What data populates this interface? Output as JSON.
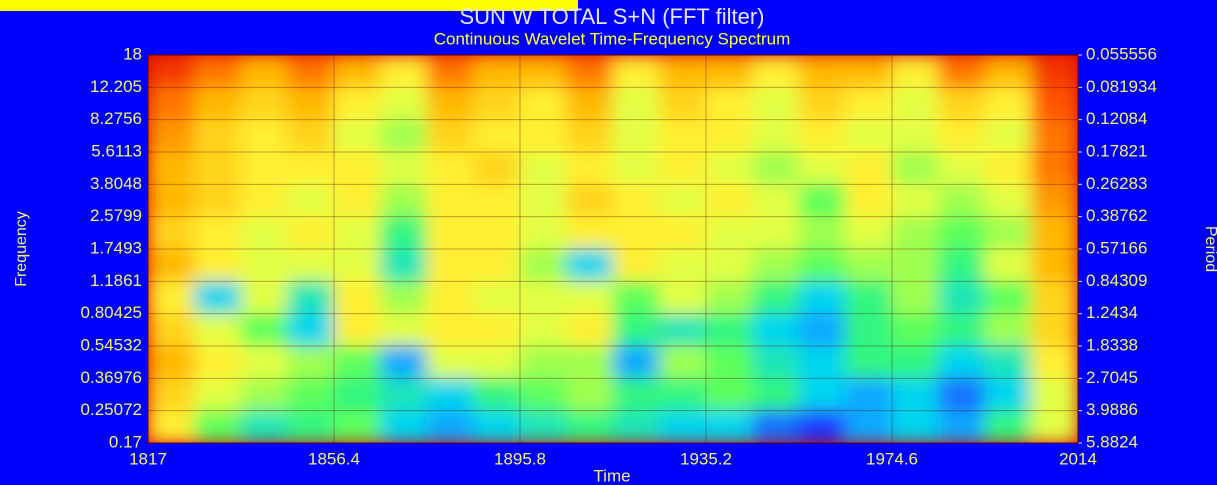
{
  "chart_data": {
    "type": "heatmap",
    "title": "SUN W TOTAL S+N (FFT filter)",
    "subtitle": "Continuous Wavelet Time-Frequency Spectrum",
    "xlabel": "Time",
    "ylabel": "Frequency",
    "y2label": "Period",
    "xlim": [
      1817,
      2014
    ],
    "xticks": [
      1817,
      1856.4,
      1895.8,
      1935.2,
      1974.6,
      2014
    ],
    "ylim": [
      0.17,
      18
    ],
    "yticks": [
      18,
      12.205,
      8.2756,
      5.6113,
      3.8048,
      2.5799,
      1.7493,
      1.1861,
      0.80425,
      0.54532,
      0.36976,
      0.25072,
      0.17
    ],
    "y2lim": [
      5.8824,
      0.055556
    ],
    "y2ticks": [
      0.055556,
      0.081934,
      0.12084,
      0.17821,
      0.26283,
      0.38762,
      0.57166,
      0.84309,
      1.2434,
      1.8338,
      2.7045,
      3.9886,
      5.8824
    ],
    "log_y": true,
    "grid": true,
    "zlim": [
      0,
      1
    ],
    "colormap": [
      "#d80000",
      "#ff5000",
      "#ffb000",
      "#ffff40",
      "#40ff60",
      "#00d0ff",
      "#2030ff",
      "#a000e0"
    ],
    "z": [
      [
        0.1,
        0.2,
        0.3,
        0.2,
        0.3,
        0.4,
        0.2,
        0.3,
        0.3,
        0.2,
        0.4,
        0.3,
        0.3,
        0.4,
        0.3,
        0.3,
        0.4,
        0.2,
        0.3,
        0.1
      ],
      [
        0.2,
        0.3,
        0.35,
        0.3,
        0.4,
        0.45,
        0.3,
        0.35,
        0.4,
        0.3,
        0.45,
        0.35,
        0.4,
        0.45,
        0.35,
        0.4,
        0.45,
        0.35,
        0.4,
        0.15
      ],
      [
        0.25,
        0.35,
        0.4,
        0.35,
        0.45,
        0.5,
        0.35,
        0.4,
        0.4,
        0.35,
        0.45,
        0.4,
        0.4,
        0.45,
        0.4,
        0.45,
        0.45,
        0.4,
        0.45,
        0.2
      ],
      [
        0.3,
        0.35,
        0.4,
        0.4,
        0.4,
        0.45,
        0.4,
        0.35,
        0.45,
        0.4,
        0.45,
        0.4,
        0.45,
        0.5,
        0.45,
        0.4,
        0.5,
        0.45,
        0.4,
        0.2
      ],
      [
        0.3,
        0.35,
        0.4,
        0.45,
        0.4,
        0.5,
        0.4,
        0.4,
        0.45,
        0.35,
        0.4,
        0.45,
        0.4,
        0.45,
        0.55,
        0.4,
        0.45,
        0.5,
        0.45,
        0.25
      ],
      [
        0.35,
        0.4,
        0.45,
        0.4,
        0.45,
        0.6,
        0.4,
        0.4,
        0.45,
        0.4,
        0.4,
        0.4,
        0.45,
        0.45,
        0.5,
        0.45,
        0.5,
        0.55,
        0.5,
        0.3
      ],
      [
        0.3,
        0.4,
        0.45,
        0.45,
        0.45,
        0.65,
        0.4,
        0.4,
        0.5,
        0.7,
        0.4,
        0.45,
        0.45,
        0.5,
        0.55,
        0.5,
        0.5,
        0.6,
        0.45,
        0.3
      ],
      [
        0.4,
        0.7,
        0.45,
        0.65,
        0.4,
        0.5,
        0.4,
        0.45,
        0.45,
        0.45,
        0.55,
        0.45,
        0.5,
        0.6,
        0.7,
        0.6,
        0.5,
        0.65,
        0.55,
        0.35
      ],
      [
        0.35,
        0.45,
        0.55,
        0.7,
        0.4,
        0.45,
        0.4,
        0.4,
        0.45,
        0.4,
        0.6,
        0.65,
        0.6,
        0.7,
        0.75,
        0.6,
        0.55,
        0.6,
        0.5,
        0.35
      ],
      [
        0.3,
        0.4,
        0.45,
        0.5,
        0.55,
        0.75,
        0.45,
        0.45,
        0.5,
        0.5,
        0.75,
        0.5,
        0.55,
        0.65,
        0.7,
        0.6,
        0.6,
        0.7,
        0.65,
        0.4
      ],
      [
        0.35,
        0.45,
        0.5,
        0.55,
        0.6,
        0.65,
        0.7,
        0.6,
        0.55,
        0.5,
        0.6,
        0.6,
        0.55,
        0.6,
        0.7,
        0.75,
        0.7,
        0.8,
        0.7,
        0.45
      ],
      [
        0.4,
        0.55,
        0.65,
        0.6,
        0.55,
        0.7,
        0.75,
        0.7,
        0.65,
        0.6,
        0.65,
        0.7,
        0.7,
        0.8,
        0.85,
        0.75,
        0.7,
        0.75,
        0.6,
        0.45
      ]
    ]
  }
}
